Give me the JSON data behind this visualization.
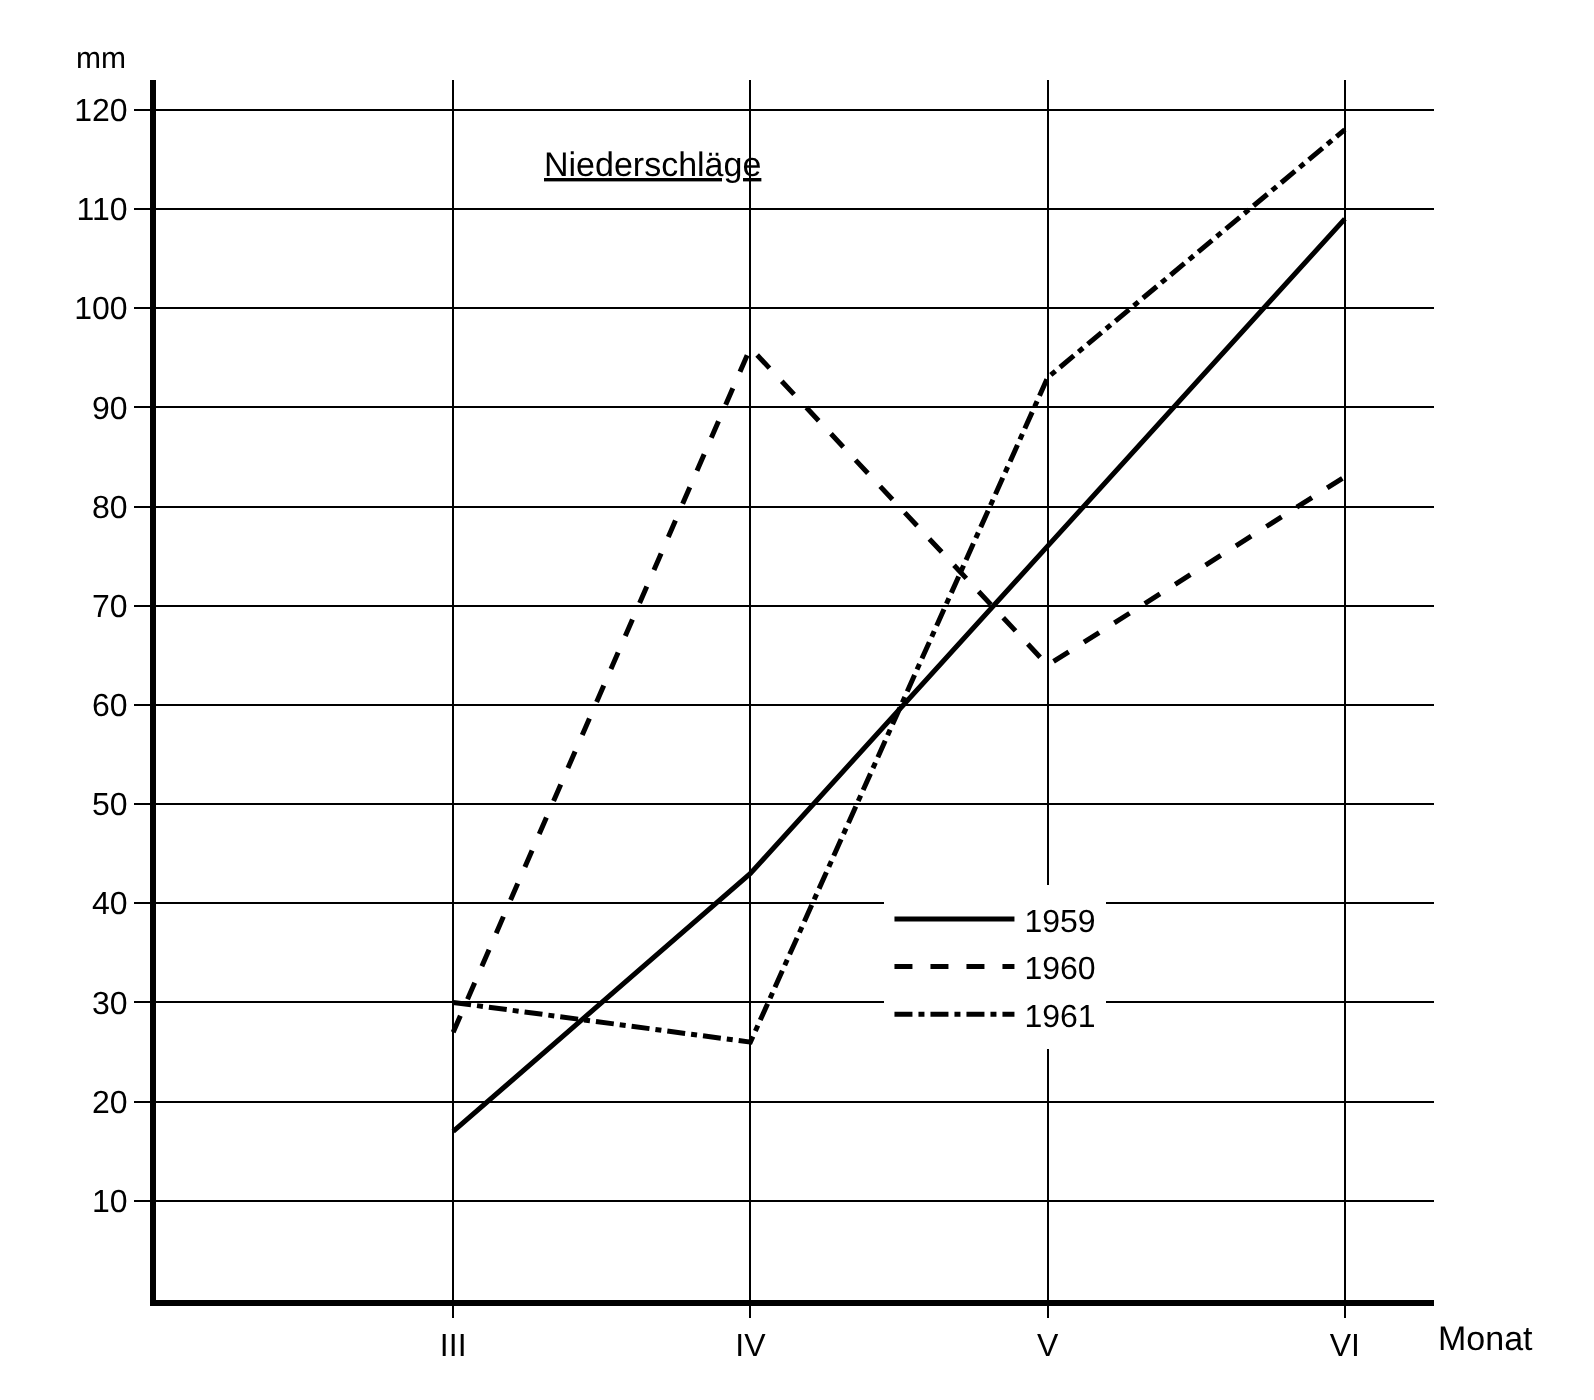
{
  "chart_data": {
    "type": "line",
    "title": "Niederschläge",
    "xlabel": "Monat",
    "ylabel": "mm",
    "categories": [
      "III",
      "IV",
      "V",
      "VI"
    ],
    "series": [
      {
        "name": "1959",
        "color": "#000000",
        "line_style": "solid",
        "values": [
          17,
          43,
          76,
          109
        ]
      },
      {
        "name": "1960",
        "color": "#000000",
        "line_style": "dashed",
        "values": [
          27,
          96,
          64,
          83
        ]
      },
      {
        "name": "1961",
        "color": "#000000",
        "line_style": "dashdot",
        "values": [
          30,
          26,
          93,
          118
        ]
      }
    ],
    "ylim": [
      0,
      123
    ],
    "yticks": [
      10,
      20,
      30,
      40,
      50,
      60,
      70,
      80,
      90,
      100,
      110,
      120
    ],
    "grid": true,
    "legend": "bottom right",
    "marker": "none"
  }
}
